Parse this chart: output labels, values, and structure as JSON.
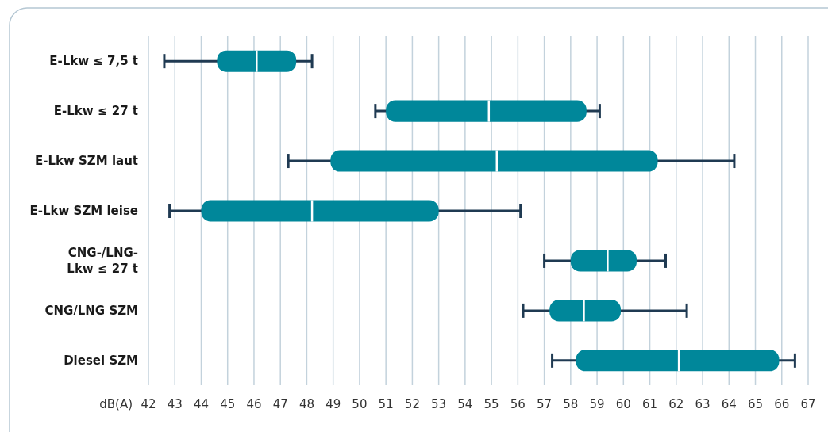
{
  "chart_data": {
    "type": "box",
    "orientation": "horizontal",
    "xlabel": "dB(A)",
    "categories": [
      "E-Lkw ≤ 7,5 t",
      "E-Lkw ≤ 27 t",
      "E-Lkw SZM laut",
      "E-Lkw SZM leise",
      "CNG-/LNG-\nLkw ≤ 27 t",
      "CNG/LNG SZM",
      "Diesel SZM"
    ],
    "series": [
      {
        "color": "#00879a",
        "boxes": [
          {
            "low": 42.6,
            "q1": 44.6,
            "median": 46.1,
            "q3": 47.6,
            "high": 48.2
          },
          {
            "low": 50.6,
            "q1": 51.0,
            "median": 54.9,
            "q3": 58.6,
            "high": 59.1
          },
          {
            "low": 47.3,
            "q1": 48.9,
            "median": 55.2,
            "q3": 61.3,
            "high": 64.2
          },
          {
            "low": 42.8,
            "q1": 44.0,
            "median": 48.2,
            "q3": 53.0,
            "high": 56.1
          },
          {
            "low": 57.0,
            "q1": 58.0,
            "median": 59.4,
            "q3": 60.5,
            "high": 61.6
          },
          {
            "low": 56.2,
            "q1": 57.2,
            "median": 58.5,
            "q3": 59.9,
            "high": 62.4
          },
          {
            "low": 57.3,
            "q1": 58.2,
            "median": 62.1,
            "q3": 65.9,
            "high": 66.5
          }
        ]
      }
    ],
    "xlim": [
      42,
      67
    ],
    "xticks": [
      42,
      43,
      44,
      45,
      46,
      47,
      48,
      49,
      50,
      51,
      52,
      53,
      54,
      55,
      56,
      57,
      58,
      59,
      60,
      61,
      62,
      63,
      64,
      65,
      66,
      67
    ],
    "grid": "x"
  }
}
